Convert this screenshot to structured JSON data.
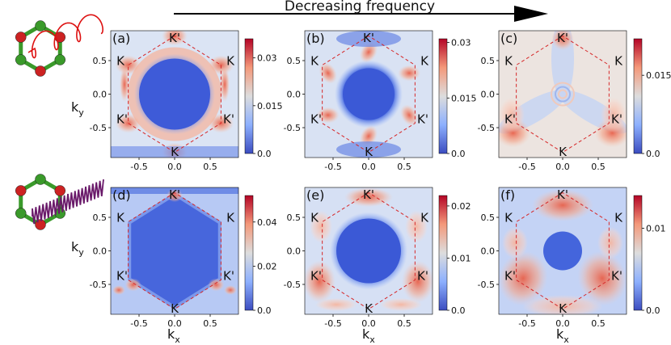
{
  "title": "Decreasing frequency",
  "colors": {
    "bz_line": "#d62728",
    "arrow": "#000000",
    "atom_green": "#3a9a2a",
    "atom_red": "#cc2222",
    "circular_wave": "#dd1111",
    "linear_wave": "#6a1a6a",
    "cmap_low": "#3b4cc0",
    "cmap_mid": "#dddddd",
    "cmap_high": "#b40426"
  },
  "axis_labels": {
    "kx": "k",
    "kx_sub": "x",
    "ky": "k",
    "ky_sub": "y"
  },
  "k_labels": {
    "K": "K",
    "Kp": "K'"
  },
  "chart_data": [
    {
      "id": "a",
      "label": "(a)",
      "type": "heatmap",
      "x_ticks": [
        "-0.5",
        "0.0",
        "0.5"
      ],
      "y_ticks": [
        "0.5",
        "0.0",
        "-0.5"
      ],
      "cbar_ticks": [
        "0.03",
        "0.015",
        "0.0"
      ],
      "cbar_values": [
        0.03,
        0.015,
        0.0
      ],
      "cbar_max": 0.036,
      "pattern": "a",
      "top_label": "K'",
      "bottom_label": "K",
      "left_upper": "K",
      "right_upper": "K",
      "left_lower": "K'",
      "right_lower": "K'"
    },
    {
      "id": "b",
      "label": "(b)",
      "type": "heatmap",
      "x_ticks": [
        "-0.5",
        "0.0",
        "0.5"
      ],
      "y_ticks": [
        "0.5",
        "0.0",
        "-0.5"
      ],
      "cbar_ticks": [
        "0.03",
        "0.015",
        "0.0"
      ],
      "cbar_values": [
        0.03,
        0.015,
        0.0
      ],
      "cbar_max": 0.031,
      "pattern": "b",
      "top_label": "K'",
      "bottom_label": "K",
      "left_upper": "K",
      "right_upper": "K",
      "left_lower": "K'",
      "right_lower": "K'"
    },
    {
      "id": "c",
      "label": "(c)",
      "type": "heatmap",
      "x_ticks": [
        "-0.5",
        "0.0",
        "0.5"
      ],
      "y_ticks": [
        "0.5",
        "0.0",
        "-0.5"
      ],
      "cbar_ticks": [
        "0.015",
        "0.0"
      ],
      "cbar_values": [
        0.015,
        0.0
      ],
      "cbar_max": 0.022,
      "pattern": "c",
      "top_label": "K'",
      "bottom_label": "K",
      "left_upper": "K",
      "right_upper": "K",
      "left_lower": "K'",
      "right_lower": "K'"
    },
    {
      "id": "d",
      "label": "(d)",
      "type": "heatmap",
      "x_ticks": [
        "-0.5",
        "0.0",
        "0.5"
      ],
      "y_ticks": [
        "0.5",
        "0.0",
        "-0.5"
      ],
      "cbar_ticks": [
        "0.04",
        "0.02",
        "0.0"
      ],
      "cbar_values": [
        0.04,
        0.02,
        0.0
      ],
      "cbar_max": 0.052,
      "pattern": "d",
      "top_label": "K'",
      "bottom_label": "K",
      "left_upper": "K",
      "right_upper": "K",
      "left_lower": "K'",
      "right_lower": "K'"
    },
    {
      "id": "e",
      "label": "(e)",
      "type": "heatmap",
      "x_ticks": [
        "-0.5",
        "0.0",
        "0.5"
      ],
      "y_ticks": [
        "0.5",
        "0.0",
        "-0.5"
      ],
      "cbar_ticks": [
        "0.02",
        "0.01",
        "0.0"
      ],
      "cbar_values": [
        0.02,
        0.01,
        0.0
      ],
      "cbar_max": 0.022,
      "pattern": "e",
      "top_label": "K'",
      "bottom_label": "K",
      "left_upper": "K",
      "right_upper": "K",
      "left_lower": "K'",
      "right_lower": "K'"
    },
    {
      "id": "f",
      "label": "(f)",
      "type": "heatmap",
      "x_ticks": [
        "-0.5",
        "0.0",
        "0.5"
      ],
      "y_ticks": [
        "0.5",
        "0.0",
        "-0.5"
      ],
      "cbar_ticks": [
        "0.01",
        "0.0"
      ],
      "cbar_values": [
        0.01,
        0.0
      ],
      "cbar_max": 0.014,
      "pattern": "f",
      "top_label": "K'",
      "bottom_label": "K",
      "left_upper": "K",
      "right_upper": "K",
      "left_lower": "K'",
      "right_lower": "K'"
    }
  ]
}
